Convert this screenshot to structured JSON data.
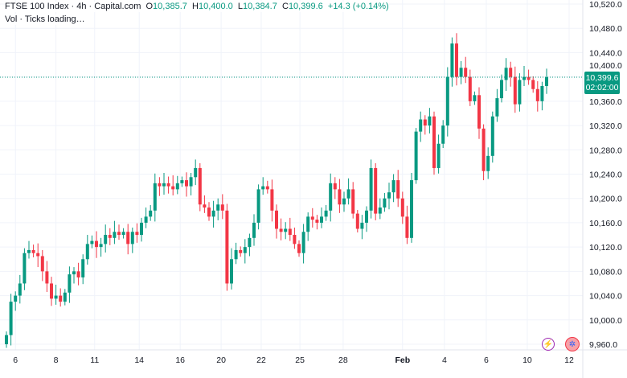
{
  "legend": {
    "symbol": "FTSE 100 Index · 4h · Capital.com",
    "o_label": "O",
    "o": "10,385.7",
    "h_label": "H",
    "h": "10,400.0",
    "l_label": "L",
    "l": "10,384.7",
    "c_label": "C",
    "c": "10,399.6",
    "change": "+14.3 (+0.14%)",
    "volume": "Vol · Ticks loading…"
  },
  "last_price": {
    "price": "10,399.6",
    "countdown": "02:02:00"
  },
  "colors": {
    "up": "#089981",
    "down": "#f23645",
    "grid": "#f0f3fa"
  },
  "chart_data": {
    "type": "candlestick",
    "y_ticks": [
      10520,
      10480,
      10440,
      10400,
      10360,
      10320,
      10280,
      10240,
      10200,
      10160,
      10120,
      10080,
      10040,
      10000,
      9960
    ],
    "y_tick_labels": [
      "10,520.0",
      "10,480.0",
      "10,440.0",
      "10,400.0",
      "10,360.0",
      "10,320.0",
      "10,280.0",
      "10,240.0",
      "10,200.0",
      "10,160.0",
      "10,120.0",
      "10,080.0",
      "10,040.0",
      "10,000.0",
      "9,960.0"
    ],
    "x_labels": [
      {
        "label": "6",
        "index": 2
      },
      {
        "label": "8",
        "index": 11
      },
      {
        "label": "11",
        "index": 19.6
      },
      {
        "label": "14",
        "index": 29.5
      },
      {
        "label": "16",
        "index": 38.6
      },
      {
        "label": "20",
        "index": 47.7
      },
      {
        "label": "22",
        "index": 56.6
      },
      {
        "label": "25",
        "index": 65.2
      },
      {
        "label": "28",
        "index": 74.8
      },
      {
        "label": "Feb",
        "index": 88
      },
      {
        "label": "4",
        "index": 97.3
      },
      {
        "label": "6",
        "index": 106.6
      },
      {
        "label": "10",
        "index": 115.7
      },
      {
        "label": "12",
        "index": 125
      }
    ],
    "closes": [
      9975,
      10030,
      10040,
      10060,
      10110,
      10115,
      10110,
      10105,
      10080,
      10060,
      10035,
      10040,
      10030,
      10045,
      10075,
      10080,
      10070,
      10100,
      10125,
      10130,
      10120,
      10125,
      10140,
      10135,
      10145,
      10140,
      10145,
      10125,
      10145,
      10140,
      10160,
      10170,
      10180,
      10225,
      10220,
      10225,
      10220,
      10215,
      10225,
      10230,
      10220,
      10235,
      10250,
      10190,
      10185,
      10170,
      10180,
      10190,
      10180,
      10060,
      10100,
      10115,
      10110,
      10120,
      10135,
      10160,
      10215,
      10220,
      10215,
      10180,
      10150,
      10145,
      10150,
      10140,
      10125,
      10110,
      10145,
      10170,
      10165,
      10160,
      10170,
      10180,
      10225,
      10215,
      10190,
      10200,
      10215,
      10175,
      10150,
      10160,
      10180,
      10250,
      10175,
      10185,
      10200,
      10210,
      10230,
      10200,
      10170,
      10135,
      10230,
      10310,
      10330,
      10320,
      10335,
      10250,
      10290,
      10320,
      10400,
      10455,
      10400,
      10415,
      10400,
      10360,
      10370,
      10315,
      10245,
      10270,
      10335,
      10365,
      10395,
      10415,
      10400,
      10355,
      10395,
      10400,
      10395,
      10380,
      10360,
      10385,
      10399.6
    ],
    "first_open": 9960,
    "ylim": [
      9945,
      10530
    ]
  }
}
